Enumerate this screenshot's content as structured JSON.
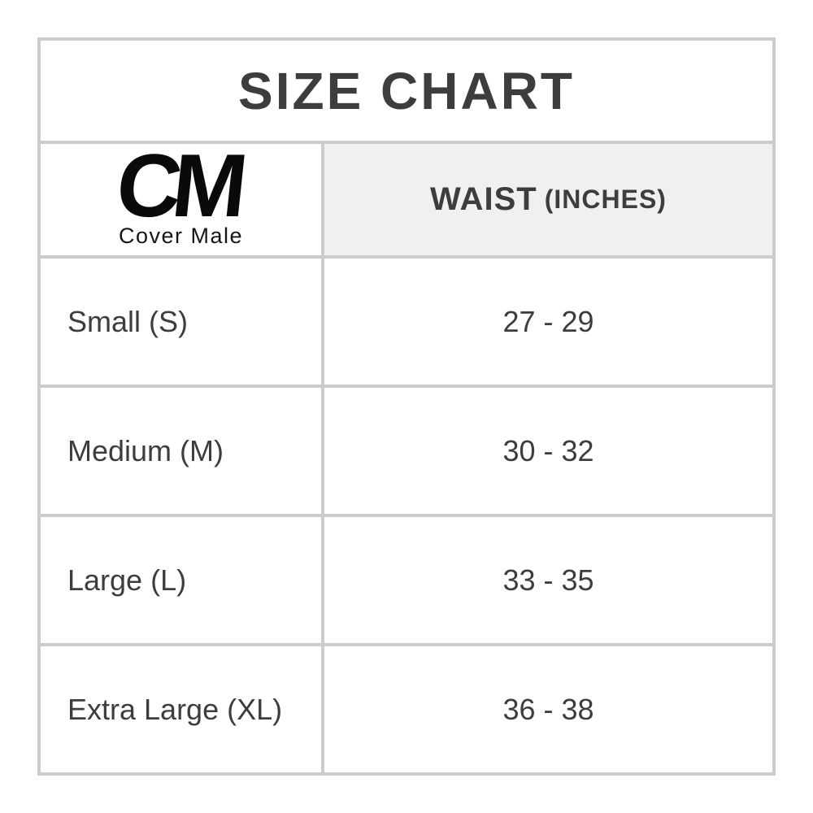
{
  "chart_data": {
    "type": "table",
    "title": "SIZE CHART",
    "brand": {
      "logo": "CM",
      "name": "Cover Male"
    },
    "columns": {
      "waist_label": "WAIST",
      "waist_unit": "(INCHES)"
    },
    "rows": [
      {
        "size": "Small (S)",
        "waist": "27 - 29"
      },
      {
        "size": "Medium (M)",
        "waist": "30 - 32"
      },
      {
        "size": "Large (L)",
        "waist": "33 - 35"
      },
      {
        "size": "Extra Large (XL)",
        "waist": "36 - 38"
      }
    ]
  },
  "colors": {
    "border": "#cccccc",
    "header_bg": "#f0f0f0",
    "text": "#3d3d3d",
    "logo": "#0a0a0a",
    "background": "#ffffff"
  }
}
